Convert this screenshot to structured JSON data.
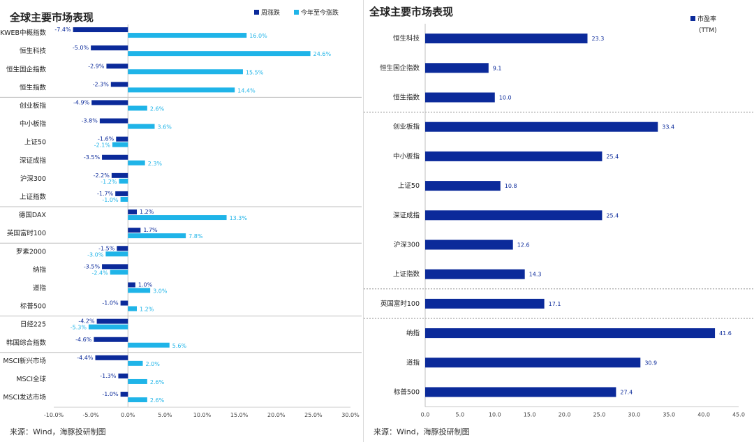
{
  "source": "来源：Wind，海豚投研制图",
  "colors": {
    "dark": "#0b2a9a",
    "light": "#1fb4e8"
  },
  "chart_data": [
    {
      "type": "bar",
      "orientation": "horizontal",
      "title": "全球主要市场表现",
      "categories": [
        "KWEB中概指数",
        "恒生科技",
        "恒生国企指数",
        "恒生指数",
        "创业板指",
        "中小板指",
        "上证50",
        "深证成指",
        "沪深300",
        "上证指数",
        "德国DAX",
        "英国富时100",
        "罗素2000",
        "纳指",
        "道指",
        "标普500",
        "日经225",
        "韩国综合指数",
        "MSCI新兴市场",
        "MSCI全球",
        "MSCI发达市场"
      ],
      "groups": [
        [
          0,
          3
        ],
        [
          4,
          9
        ],
        [
          10,
          11
        ],
        [
          12,
          15
        ],
        [
          16,
          17
        ],
        [
          18,
          20
        ]
      ],
      "series": [
        {
          "name": "周涨跌",
          "values": [
            -7.4,
            -5.0,
            -2.9,
            -2.3,
            -4.9,
            -3.8,
            -1.6,
            -3.5,
            -2.2,
            -1.7,
            1.2,
            1.7,
            -1.5,
            -3.5,
            1.0,
            -1.0,
            -4.2,
            -4.6,
            -4.4,
            -1.3,
            -1.0
          ]
        },
        {
          "name": "今年至今涨跌",
          "values": [
            16.0,
            24.6,
            15.5,
            14.4,
            2.6,
            3.6,
            -2.1,
            2.3,
            -1.2,
            -1.0,
            13.3,
            7.8,
            -3.0,
            -2.4,
            3.0,
            1.2,
            -5.3,
            5.6,
            2.0,
            2.6,
            2.6
          ]
        }
      ],
      "xlim": [
        -10,
        30
      ],
      "xticks": [
        "-10.0%",
        "-5.0%",
        "0.0%",
        "5.0%",
        "10.0%",
        "15.0%",
        "20.0%",
        "25.0%",
        "30.0%"
      ],
      "legend": "top-right"
    },
    {
      "type": "bar",
      "orientation": "horizontal",
      "title": "全球主要市场表现",
      "categories": [
        "恒生科技",
        "恒生国企指数",
        "恒生指数",
        "创业板指",
        "中小板指",
        "上证50",
        "深证成指",
        "沪深300",
        "上证指数",
        "英国富时100",
        "纳指",
        "道指",
        "标普500"
      ],
      "groups": [
        [
          0,
          2
        ],
        [
          3,
          8
        ],
        [
          9,
          9
        ],
        [
          10,
          12
        ]
      ],
      "series": [
        {
          "name": "市盈率",
          "name_sub": "(TTM)",
          "values": [
            23.3,
            9.1,
            10.0,
            33.4,
            25.4,
            10.8,
            25.4,
            12.6,
            14.3,
            17.1,
            41.6,
            30.9,
            27.4
          ]
        }
      ],
      "xlim": [
        0,
        45
      ],
      "xticks": [
        "0.0",
        "5.0",
        "10.0",
        "15.0",
        "20.0",
        "25.0",
        "30.0",
        "35.0",
        "40.0",
        "45.0"
      ],
      "legend": "top-right"
    }
  ]
}
